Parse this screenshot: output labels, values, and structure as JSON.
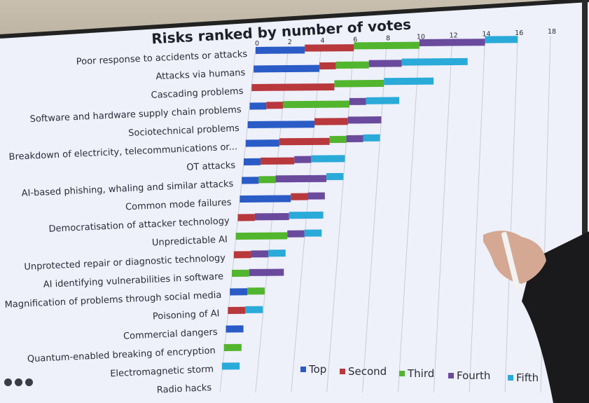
{
  "chart_data": {
    "type": "bar",
    "orientation": "horizontal",
    "stacked": true,
    "title": "Risks ranked by number of votes",
    "xlim": [
      0,
      18
    ],
    "xticks": [
      "0",
      "2",
      "4",
      "6",
      "8",
      "10",
      "12",
      "14",
      "16",
      "18"
    ],
    "grid": true,
    "legend_position": "bottom-right",
    "categories": [
      "Poor response to accidents or attacks",
      "Attacks via humans",
      "Cascading problems",
      "Software and hardware supply chain problems",
      "Sociotechnical problems",
      "Breakdown of electricity, telecommunications or...",
      "OT attacks",
      "AI-based phishing, whaling and similar attacks",
      "Common mode failures",
      "Democratisation of attacker technology",
      "Unpredictable AI",
      "Unprotected repair or diagnostic technology",
      "AI identifying vulnerabilities in software",
      "Magnification of problems through social media",
      "Poisoning of AI",
      "Commercial dangers",
      "Quantum-enabled breaking of encryption",
      "Electromagnetic storm",
      "Radio hacks"
    ],
    "series": [
      {
        "name": "Top",
        "color": "#2a5bc6",
        "values": [
          3,
          4,
          0,
          1,
          4,
          2,
          1,
          1,
          3,
          0,
          0,
          0,
          0,
          1,
          0,
          1,
          0,
          0,
          0
        ]
      },
      {
        "name": "Second",
        "color": "#b8383c",
        "values": [
          3,
          1,
          5,
          1,
          2,
          3,
          2,
          0,
          1,
          1,
          0,
          1,
          0,
          0,
          1,
          0,
          0,
          0,
          0
        ]
      },
      {
        "name": "Third",
        "color": "#52b52e",
        "values": [
          4,
          2,
          3,
          4,
          0,
          1,
          0,
          1,
          0,
          0,
          3,
          0,
          1,
          1,
          0,
          0,
          1,
          0,
          0
        ]
      },
      {
        "name": "Fourth",
        "color": "#6a4a9c",
        "values": [
          4,
          2,
          0,
          1,
          2,
          1,
          1,
          3,
          1,
          2,
          1,
          1,
          2,
          0,
          0,
          0,
          0,
          0,
          0
        ]
      },
      {
        "name": "Fifth",
        "color": "#2aaad9",
        "values": [
          2,
          4,
          3,
          2,
          0,
          1,
          2,
          1,
          0,
          2,
          1,
          1,
          0,
          0,
          1,
          0,
          0,
          1,
          0
        ]
      }
    ]
  },
  "controls": [
    "prev-icon",
    "menu-icon",
    "next-icon"
  ]
}
